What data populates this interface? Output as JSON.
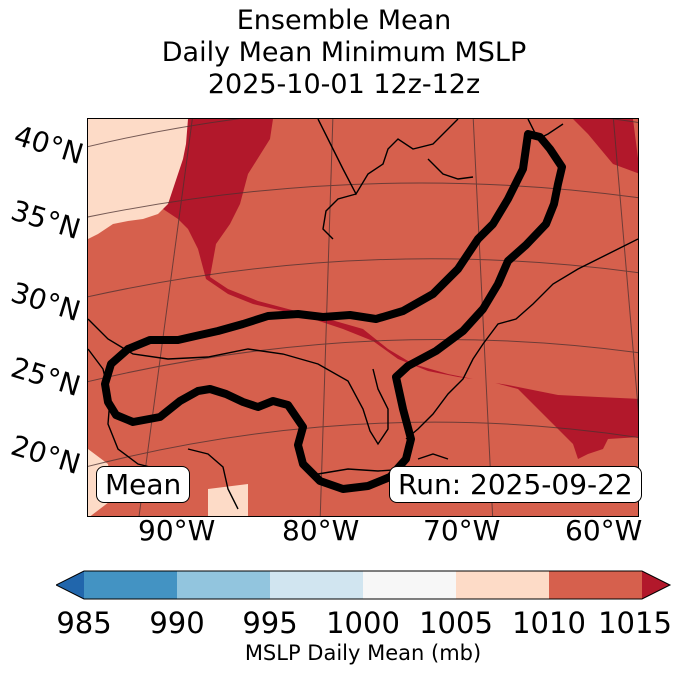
{
  "title": {
    "line1": "Ensemble Mean",
    "line2": "Daily Mean Minimum MSLP",
    "line3": "2025-10-01 12z-12z"
  },
  "map": {
    "lat_labels": [
      "40°N",
      "35°N",
      "30°N",
      "25°N",
      "20°N"
    ],
    "lon_labels": [
      "90°W",
      "80°W",
      "70°W",
      "60°W"
    ],
    "mean_label": "Mean",
    "run_label": "Run: 2025-09-22",
    "contour": {
      "level_mb": 1010,
      "color": "#000000"
    }
  },
  "colorbar": {
    "ticks": [
      "985",
      "990",
      "995",
      "1000",
      "1005",
      "1010",
      "1015"
    ],
    "colors": {
      "under": "#2166ac",
      "985-990": "#4393c3",
      "990-995": "#92c5de",
      "995-1000": "#d1e5f0",
      "1000-1005": "#f7f7f7",
      "1005-1010": "#fddbc7",
      "1010-1015": "#d6604d",
      "over": "#b2182b"
    },
    "label": "MSLP Daily Mean (mb)"
  }
}
